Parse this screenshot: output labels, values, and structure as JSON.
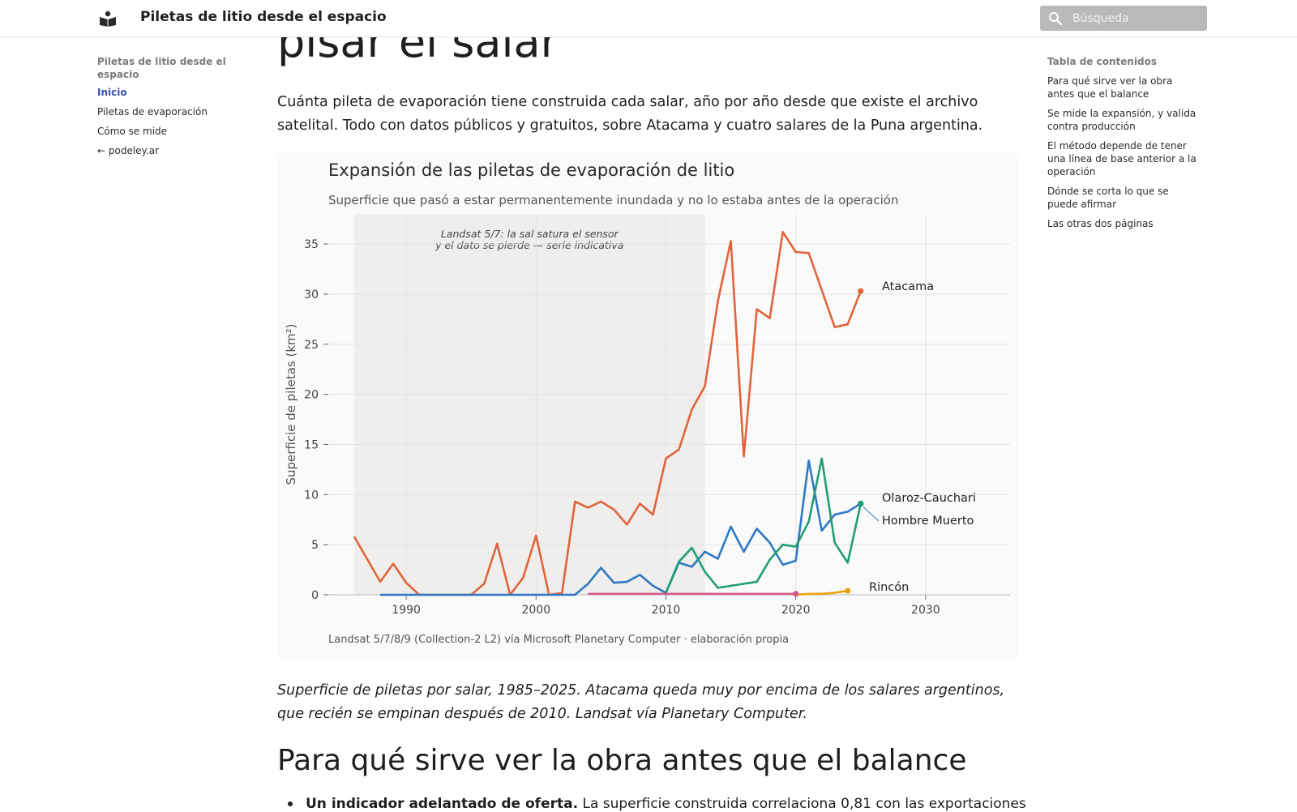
{
  "header": {
    "site_title": "Piletas de litio desde el espacio",
    "search_placeholder": "Búsqueda",
    "logo_icon": "book-reader-icon"
  },
  "leftnav": {
    "section": "Piletas de litio desde el espacio",
    "items": [
      {
        "label": "Inicio",
        "active": true
      },
      {
        "label": "Piletas de evaporación",
        "active": false
      },
      {
        "label": "Cómo se mide",
        "active": false
      },
      {
        "label": "← podeley.ar",
        "active": false
      }
    ]
  },
  "toc": {
    "title": "Tabla de contenidos",
    "items": [
      "Para qué sirve ver la obra antes que el balance",
      "Se mide la expansión, y valida contra producción",
      "El método depende de tener una línea de base anterior a la operación",
      "Dónde se corta lo que se puede afirmar",
      "Las otras dos páginas"
    ]
  },
  "main": {
    "title_fragment": "pisar el salar",
    "intro": "Cuánta pileta de evaporación tiene construida cada salar, año por año desde que existe el archivo satelital. Todo con datos públicos y gratuitos, sobre Atacama y cuatro salares de la Puna argentina.",
    "caption": "Superficie de piletas por salar, 1985–2025. Atacama queda muy por encima de los salares argentinos, que recién se empinan después de 2010. Landsat vía Planetary Computer.",
    "h2": "Para qué sirve ver la obra antes que el balance",
    "bullet_bold": "Un indicador adelantado de oferta.",
    "bullet_text": " La superficie construida correlaciona 0,81 con las exportaciones"
  },
  "chart_data": {
    "type": "line",
    "title": "Expansión de las piletas de evaporación de litio",
    "subtitle": "Superficie que pasó a estar permanentemente inundada y no lo estaba antes de la operación",
    "xlabel": "",
    "ylabel": "Superficie de piletas (km²)",
    "xlim": [
      1984,
      2036.5
    ],
    "ylim": [
      0,
      38
    ],
    "xticks": [
      1990,
      2000,
      2010,
      2020,
      2030
    ],
    "yticks": [
      0,
      5,
      10,
      15,
      20,
      25,
      30,
      35
    ],
    "grid": true,
    "shaded_period": {
      "from": 1986,
      "to": 2013,
      "label_line1": "Landsat 5/7: la sal satura el sensor",
      "label_line2": "y el dato se pierde — serie indicativa"
    },
    "source": "Landsat 5/7/8/9 (Collection-2 L2) vía Microsoft Planetary Computer · elaboración propia",
    "series": [
      {
        "name": "Atacama",
        "color": "#e0643a",
        "x": [
          1986,
          1988,
          1989,
          1990,
          1991,
          1995,
          1996,
          1997,
          1998,
          1999,
          2000,
          2001,
          2002,
          2003,
          2004,
          2005,
          2006,
          2007,
          2008,
          2009,
          2010,
          2011,
          2012,
          2013,
          2014,
          2015,
          2016,
          2017,
          2018,
          2019,
          2020,
          2021,
          2023,
          2024,
          2025
        ],
        "y": [
          5.8,
          1.3,
          3.1,
          1.2,
          0,
          0,
          1.1,
          5.1,
          0,
          1.7,
          5.9,
          0,
          0.2,
          9.3,
          8.7,
          9.3,
          8.5,
          7.0,
          9.1,
          8.0,
          13.6,
          14.5,
          18.5,
          20.8,
          29.3,
          35.3,
          13.8,
          28.5,
          27.6,
          36.2,
          34.2,
          34.1,
          26.7,
          27.0,
          30.3
        ]
      },
      {
        "name": "Olaroz-Cauchari",
        "color": "#2f78c4",
        "x": [
          1988,
          1991,
          1999,
          2003,
          2004,
          2005,
          2006,
          2007,
          2008,
          2009,
          2010,
          2011,
          2012,
          2013,
          2014,
          2015,
          2016,
          2017,
          2018,
          2019,
          2020,
          2021,
          2022,
          2023,
          2024,
          2025
        ],
        "y": [
          0,
          0,
          0,
          0,
          1.1,
          2.7,
          1.2,
          1.3,
          2.0,
          0.9,
          0.2,
          3.2,
          2.8,
          4.3,
          3.6,
          6.8,
          4.3,
          6.6,
          5.2,
          3.0,
          3.4,
          13.4,
          6.4,
          8.0,
          8.3,
          9.1
        ]
      },
      {
        "name": "Hombre Muerto",
        "color": "#1f9e74",
        "x": [
          2010,
          2011,
          2012,
          2013,
          2014,
          2015,
          2016,
          2017,
          2018,
          2019,
          2020,
          2021,
          2022,
          2023,
          2024,
          2025
        ],
        "y": [
          0.2,
          3.3,
          4.7,
          2.3,
          0.7,
          0.9,
          1.1,
          1.3,
          3.5,
          5.0,
          4.8,
          7.3,
          13.6,
          5.2,
          3.2,
          9.1
        ]
      },
      {
        "name": "Rincón",
        "color": "#e8a30a",
        "x": [
          2020,
          2021,
          2022,
          2023,
          2024
        ],
        "y": [
          0,
          0.1,
          0.1,
          0.2,
          0.4
        ]
      },
      {
        "name": "",
        "color": "#d45a8a",
        "x": [
          2004,
          2008,
          2012,
          2016,
          2020
        ],
        "y": [
          0.1,
          0.1,
          0.1,
          0.1,
          0.1
        ]
      }
    ]
  }
}
